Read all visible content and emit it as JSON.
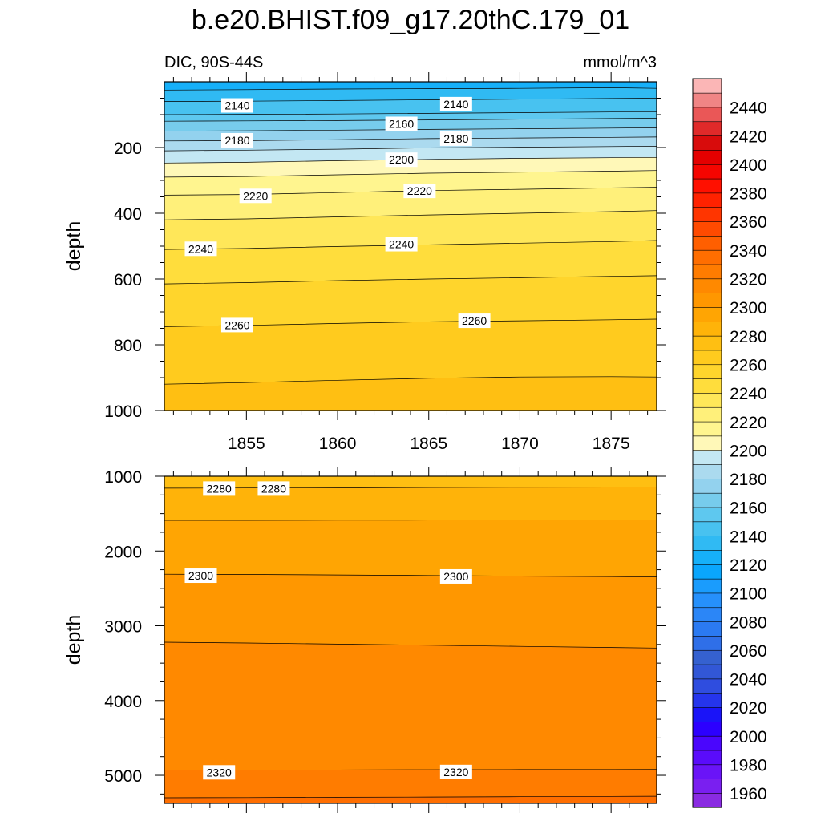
{
  "title": "b.e20.BHIST.f09_g17.20thC.179_01",
  "left_string": "DIC, 90S-44S",
  "right_string": "mmol/m^3",
  "chart_data": [
    {
      "type": "contour",
      "panel": "upper",
      "ylabel": "depth",
      "xlim": [
        1850.5,
        1877.5
      ],
      "ylim": [
        0,
        1000
      ],
      "y_reversed": true,
      "xticks": [
        1855,
        1860,
        1865,
        1870,
        1875
      ],
      "xtick_labels": [
        "1855",
        "1860",
        "1865",
        "1870",
        "1875"
      ],
      "yticks": [
        200,
        400,
        600,
        800,
        1000
      ],
      "ytick_labels": [
        "200",
        "400",
        "600",
        "800",
        "1000"
      ],
      "contours": [
        {
          "level": 2130,
          "x": [
            1850.5,
            1855,
            1860,
            1865,
            1870,
            1875,
            1877.5
          ],
          "y": [
            25,
            24,
            22,
            21,
            20,
            18,
            20
          ]
        },
        {
          "level": 2140,
          "x": [
            1850.5,
            1855,
            1860,
            1865,
            1870,
            1875,
            1877.5
          ],
          "y": [
            60,
            59,
            57,
            55,
            53,
            51,
            50
          ]
        },
        {
          "level": 2150,
          "x": [
            1850.5,
            1855,
            1860,
            1865,
            1870,
            1875,
            1877.5
          ],
          "y": [
            100,
            99,
            98,
            96,
            94,
            92,
            91
          ]
        },
        {
          "level": 2160,
          "x": [
            1850.5,
            1855,
            1860,
            1865,
            1870,
            1875,
            1877.5
          ],
          "y": [
            120,
            119,
            118,
            116,
            114,
            112,
            111
          ]
        },
        {
          "level": 2170,
          "x": [
            1850.5,
            1855,
            1860,
            1865,
            1870,
            1875,
            1877.5
          ],
          "y": [
            150,
            149,
            147,
            145,
            143,
            141,
            140
          ]
        },
        {
          "level": 2180,
          "x": [
            1850.5,
            1855,
            1860,
            1865,
            1870,
            1875,
            1877.5
          ],
          "y": [
            180,
            179,
            176,
            173,
            171,
            169,
            168
          ]
        },
        {
          "level": 2190,
          "x": [
            1850.5,
            1855,
            1860,
            1865,
            1870,
            1875,
            1877.5
          ],
          "y": [
            210,
            208,
            205,
            201,
            199,
            197,
            196
          ]
        },
        {
          "level": 2200,
          "x": [
            1850.5,
            1855,
            1860,
            1865,
            1870,
            1875,
            1877.5
          ],
          "y": [
            247,
            245,
            240,
            236,
            233,
            231,
            230
          ]
        },
        {
          "level": 2210,
          "x": [
            1850.5,
            1855,
            1860,
            1865,
            1870,
            1875,
            1877.5
          ],
          "y": [
            290,
            288,
            283,
            278,
            275,
            272,
            270
          ]
        },
        {
          "level": 2220,
          "x": [
            1850.5,
            1855,
            1860,
            1865,
            1870,
            1875,
            1877.5
          ],
          "y": [
            345,
            343,
            337,
            331,
            327,
            323,
            321
          ]
        },
        {
          "level": 2230,
          "x": [
            1850.5,
            1855,
            1860,
            1865,
            1870,
            1875,
            1877.5
          ],
          "y": [
            420,
            417,
            411,
            405,
            400,
            395,
            392
          ]
        },
        {
          "level": 2240,
          "x": [
            1850.5,
            1855,
            1860,
            1865,
            1870,
            1875,
            1877.5
          ],
          "y": [
            510,
            507,
            501,
            496,
            491,
            486,
            483
          ]
        },
        {
          "level": 2250,
          "x": [
            1850.5,
            1855,
            1860,
            1865,
            1870,
            1875,
            1877.5
          ],
          "y": [
            615,
            611,
            605,
            600,
            596,
            592,
            590
          ]
        },
        {
          "level": 2260,
          "x": [
            1850.5,
            1855,
            1860,
            1865,
            1870,
            1875,
            1877.5
          ],
          "y": [
            745,
            741,
            735,
            730,
            727,
            724,
            722
          ]
        },
        {
          "level": 2270,
          "x": [
            1850.5,
            1855,
            1860,
            1865,
            1870,
            1875,
            1877.5
          ],
          "y": [
            920,
            915,
            908,
            902,
            898,
            897,
            898
          ]
        }
      ],
      "contour_labels": [
        {
          "text": "2140",
          "x": 1854.5,
          "y": 72
        },
        {
          "text": "2140",
          "x": 1866.5,
          "y": 68
        },
        {
          "text": "2160",
          "x": 1863.5,
          "y": 128
        },
        {
          "text": "2180",
          "x": 1854.5,
          "y": 178
        },
        {
          "text": "2180",
          "x": 1866.5,
          "y": 173
        },
        {
          "text": "2200",
          "x": 1863.5,
          "y": 237
        },
        {
          "text": "2220",
          "x": 1855.5,
          "y": 347
        },
        {
          "text": "2220",
          "x": 1864.5,
          "y": 332
        },
        {
          "text": "2240",
          "x": 1852.5,
          "y": 508
        },
        {
          "text": "2240",
          "x": 1863.5,
          "y": 494
        },
        {
          "text": "2260",
          "x": 1854.5,
          "y": 740
        },
        {
          "text": "2260",
          "x": 1867.5,
          "y": 727
        }
      ]
    },
    {
      "type": "contour",
      "panel": "lower",
      "ylabel": "depth",
      "xlim": [
        1850.5,
        1877.5
      ],
      "ylim": [
        1000,
        5375
      ],
      "y_reversed": true,
      "xticks": [
        1855,
        1860,
        1865,
        1870,
        1875
      ],
      "yticks": [
        1000,
        2000,
        3000,
        4000,
        5000
      ],
      "ytick_labels": [
        "1000",
        "2000",
        "3000",
        "4000",
        "5000"
      ],
      "contours": [
        {
          "level": 2280,
          "x": [
            1850.5,
            1855,
            1860,
            1865,
            1870,
            1875,
            1877.5
          ],
          "y": [
            1160,
            1158,
            1155,
            1150,
            1148,
            1146,
            1145
          ]
        },
        {
          "level": 2290,
          "x": [
            1850.5,
            1855,
            1860,
            1865,
            1870,
            1875,
            1877.5
          ],
          "y": [
            1590,
            1590,
            1588,
            1587,
            1586,
            1586,
            1585
          ]
        },
        {
          "level": 2300,
          "x": [
            1850.5,
            1855,
            1860,
            1865,
            1870,
            1875,
            1877.5
          ],
          "y": [
            2310,
            2314,
            2320,
            2328,
            2336,
            2343,
            2347
          ]
        },
        {
          "level": 2310,
          "x": [
            1850.5,
            1855,
            1860,
            1865,
            1870,
            1875,
            1877.5
          ],
          "y": [
            3220,
            3230,
            3245,
            3260,
            3275,
            3290,
            3298
          ]
        },
        {
          "level": 2320,
          "x": [
            1850.5,
            1855,
            1860,
            1865,
            1870,
            1875,
            1877.5
          ],
          "y": [
            4930,
            4929,
            4928,
            4926,
            4924,
            4922,
            4921
          ]
        },
        {
          "level": 2330,
          "x": [
            1850.5,
            1855,
            1860,
            1865,
            1870,
            1875,
            1877.5
          ],
          "y": [
            5300,
            5298,
            5294,
            5290,
            5286,
            5282,
            5280
          ]
        }
      ],
      "contour_labels": [
        {
          "text": "2280",
          "x": 1853.5,
          "y": 1165
        },
        {
          "text": "2280",
          "x": 1856.5,
          "y": 1165
        },
        {
          "text": "2300",
          "x": 1852.5,
          "y": 2330
        },
        {
          "text": "2300",
          "x": 1866.5,
          "y": 2340
        },
        {
          "text": "2320",
          "x": 1853.5,
          "y": 4960
        },
        {
          "text": "2320",
          "x": 1866.5,
          "y": 4955
        }
      ]
    }
  ],
  "colorbar": {
    "levels": [
      1950,
      1960,
      1970,
      1980,
      1990,
      2000,
      2010,
      2020,
      2030,
      2040,
      2050,
      2060,
      2070,
      2080,
      2090,
      2100,
      2110,
      2120,
      2130,
      2140,
      2150,
      2160,
      2170,
      2180,
      2190,
      2200,
      2210,
      2220,
      2230,
      2240,
      2250,
      2260,
      2270,
      2280,
      2290,
      2300,
      2310,
      2320,
      2330,
      2340,
      2350,
      2360,
      2370,
      2380,
      2390,
      2400,
      2410,
      2420,
      2430,
      2440,
      2450
    ],
    "colors": [
      "#8a2be2",
      "#7a1ff0",
      "#6a14f7",
      "#5a0cfb",
      "#4a06fd",
      "#2c00ff",
      "#1a14f8",
      "#2535ec",
      "#2f4ddf",
      "#3257d6",
      "#3561d0",
      "#2f6fe8",
      "#2b7af2",
      "#2b86f7",
      "#2690fb",
      "#1a9cfd",
      "#0aa6fd",
      "#16b0f9",
      "#30baf3",
      "#48c2f0",
      "#5ec8ef",
      "#77ccec",
      "#93d2ee",
      "#abdaef",
      "#c3e7f3",
      "#fff8b8",
      "#fff58f",
      "#fff07a",
      "#ffe759",
      "#ffdd3c",
      "#ffd52c",
      "#ffcb1e",
      "#ffbf12",
      "#ffb309",
      "#ffa503",
      "#ff9700",
      "#ff8900",
      "#ff7c00",
      "#ff6e00",
      "#ff5f00",
      "#ff4a00",
      "#ff3500",
      "#ff2200",
      "#ff1000",
      "#f50500",
      "#e40000",
      "#d80c0c",
      "#e02a2a",
      "#ea5757",
      "#f08585",
      "#fbb6b6"
    ],
    "tick_labels": [
      "1960",
      "1980",
      "2000",
      "2020",
      "2040",
      "2060",
      "2080",
      "2100",
      "2120",
      "2140",
      "2160",
      "2180",
      "2200",
      "2220",
      "2240",
      "2260",
      "2280",
      "2300",
      "2320",
      "2340",
      "2360",
      "2380",
      "2400",
      "2420",
      "2440"
    ]
  }
}
